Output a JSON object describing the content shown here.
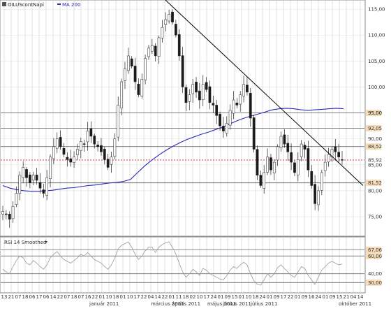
{
  "header": {
    "ticker": "OILUScontNapi",
    "ma_label": "MA 200",
    "rsi_label": "RSI 14 Smoothed"
  },
  "colors": {
    "background": "#ffffff",
    "up_candle": "#ffffff",
    "down_candle": "#1a1a1a",
    "wick": "#222222",
    "ma": "#2a2ab8",
    "trendline": "#000000",
    "support_lines": "#6b6b6b",
    "dotted_line": "#cc2222",
    "highlight_box": "#f6dcb8",
    "highlight_text": "#c0392b",
    "rsi_line": "#9a9a9a",
    "grid": "#cfcfcf"
  },
  "chart_data": [
    {
      "type": "candlestick",
      "title": "",
      "ylabel": "",
      "ylim": [
        71.5,
        116.5
      ],
      "yticks": [
        75.0,
        80.0,
        85.0,
        90.0,
        95.0,
        100.0,
        105.0,
        110.0,
        115.0
      ],
      "ytick_labels": [
        "75,00",
        "80,00",
        "85,00",
        "90,00",
        "95,00",
        "100,00",
        "105,00",
        "110,00",
        "115,00"
      ],
      "x_day_labels": [
        "13",
        "21",
        "07",
        "18",
        "06",
        "17",
        "06",
        "14",
        "22",
        "07",
        "18",
        "07",
        "16",
        "22",
        "01",
        "10",
        "18",
        "01",
        "10",
        "17",
        "22",
        "04",
        "14",
        "22",
        "01",
        "11",
        "18",
        "02",
        "10",
        "17",
        "24",
        "01",
        "09",
        "15",
        "01",
        "10",
        "18",
        "24",
        "01",
        "09",
        "17",
        "22",
        "01",
        "09",
        "16",
        "24",
        "01",
        "09",
        "15",
        "21",
        "04",
        "14"
      ],
      "x_month_labels": [
        "január 2011",
        "március 2011",
        "április 2011",
        "május 2011",
        "június 2011",
        "július 2011",
        "október 2011"
      ],
      "horizontal_levels": [
        {
          "value": 95.0,
          "label": "95,00",
          "highlight": true
        },
        {
          "value": 92.05,
          "label": "92,05",
          "highlight": true
        },
        {
          "value": 88.52,
          "label": "88,52",
          "highlight": true
        },
        {
          "value": 85.92,
          "label": "85,92",
          "highlight": false,
          "style": "dotted"
        },
        {
          "value": 81.52,
          "label": "81,52",
          "highlight": true
        }
      ],
      "last_price": 85.92,
      "trendline": [
        {
          "x": 0.45,
          "y": 117.0
        },
        {
          "x": 1.0,
          "y": 81.0
        }
      ],
      "ohlc_close_path": [
        76.0,
        75.5,
        74.5,
        77.0,
        79.5,
        83.0,
        84.5,
        82.5,
        81.5,
        83.0,
        82.0,
        80.5,
        79.5,
        82.5,
        86.5,
        88.5,
        90.0,
        88.5,
        87.0,
        86.0,
        85.5,
        86.5,
        88.0,
        89.5,
        89.0,
        91.5,
        90.5,
        89.0,
        88.5,
        87.5,
        86.0,
        84.5,
        86.5,
        90.0,
        96.5,
        101.0,
        103.5,
        106.0,
        104.0,
        101.0,
        98.5,
        101.5,
        105.5,
        107.5,
        108.0,
        106.0,
        109.5,
        111.5,
        113.0,
        114.0,
        112.5,
        110.0,
        106.0,
        100.0,
        97.0,
        98.5,
        100.5,
        99.0,
        97.5,
        100.5,
        99.5,
        97.0,
        96.5,
        94.5,
        92.5,
        91.5,
        93.0,
        95.5,
        97.5,
        96.5,
        98.5,
        100.5,
        99.0,
        94.0,
        88.0,
        83.0,
        81.0,
        83.5,
        86.5,
        84.0,
        85.5,
        88.5,
        90.5,
        89.0,
        87.5,
        85.5,
        83.5,
        86.0,
        89.0,
        88.0,
        84.0,
        81.0,
        77.5,
        80.0,
        83.5,
        85.5,
        87.0,
        88.0,
        87.5,
        86.5,
        85.92
      ],
      "ma200_path": [
        81.0,
        80.5,
        80.2,
        80.0,
        79.9,
        79.9,
        80.0,
        80.1,
        80.3,
        80.5,
        80.6,
        80.8,
        81.0,
        81.1,
        81.3,
        81.5,
        81.6,
        81.8,
        82.2,
        83.5,
        84.8,
        85.9,
        86.9,
        87.8,
        88.6,
        89.3,
        89.9,
        90.4,
        90.9,
        91.3,
        91.8,
        92.3,
        92.9,
        93.5,
        94.0,
        94.4,
        94.8,
        95.2,
        95.6,
        95.8,
        95.9,
        95.8,
        95.6,
        95.5,
        95.6,
        95.7,
        95.8,
        95.9,
        95.8
      ]
    },
    {
      "type": "line",
      "title": "",
      "ylim": [
        20,
        80
      ],
      "yticks": [
        30,
        40,
        50,
        60,
        70
      ],
      "levels": [
        {
          "value": 67.06,
          "label": "67,06",
          "highlight": true
        },
        {
          "value": 60.0,
          "label": "60,00",
          "highlight": true
        },
        {
          "value": 40.0,
          "label": "40,00",
          "highlight": false
        },
        {
          "value": 30.0,
          "label": "30,00",
          "highlight": true
        }
      ],
      "rsi_path": [
        45,
        42,
        40,
        48,
        55,
        60,
        58,
        52,
        50,
        55,
        52,
        48,
        45,
        50,
        58,
        62,
        65,
        60,
        56,
        54,
        52,
        55,
        58,
        62,
        60,
        64,
        60,
        56,
        54,
        52,
        48,
        45,
        50,
        58,
        68,
        72,
        74,
        76,
        70,
        62,
        56,
        60,
        66,
        70,
        70,
        64,
        70,
        73,
        75,
        76,
        70,
        62,
        52,
        42,
        36,
        40,
        45,
        42,
        38,
        46,
        44,
        40,
        38,
        36,
        34,
        33,
        38,
        44,
        48,
        46,
        50,
        53,
        50,
        40,
        32,
        28,
        27,
        33,
        40,
        36,
        40,
        47,
        50,
        46,
        42,
        38,
        36,
        42,
        48,
        46,
        38,
        33,
        28,
        36,
        44,
        48,
        52,
        54,
        52,
        50,
        51
      ]
    }
  ]
}
